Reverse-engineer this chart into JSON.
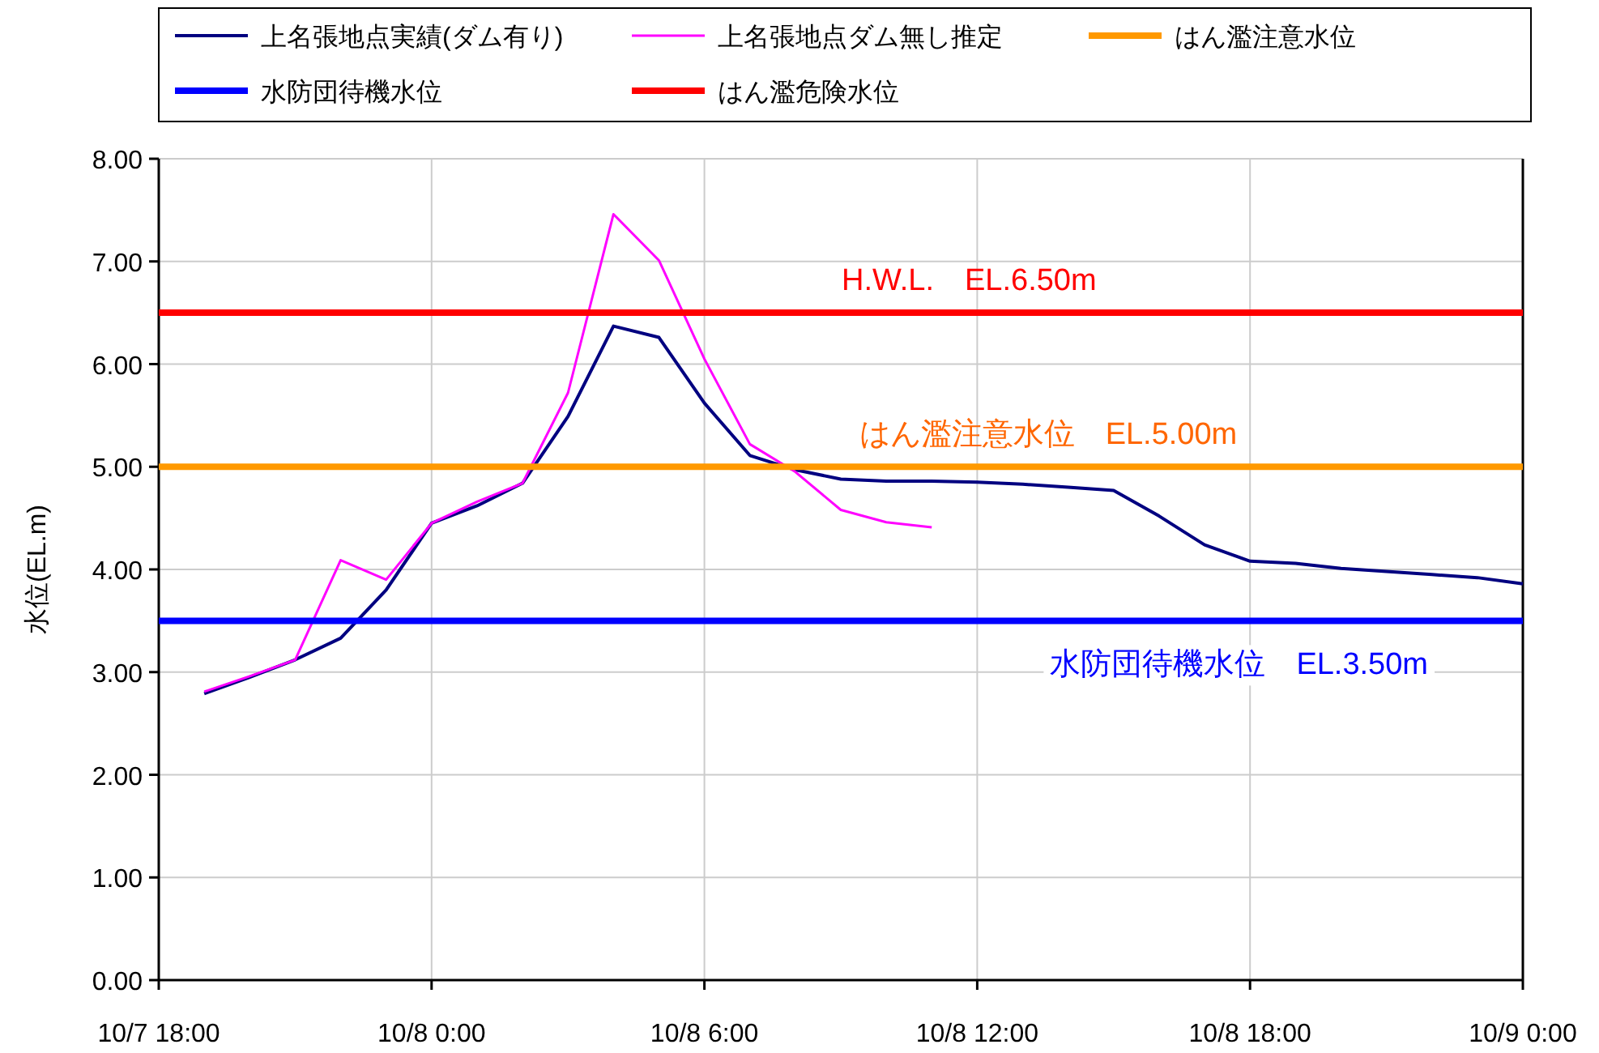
{
  "chart_data": {
    "type": "line",
    "ylabel": "水位(EL.m)",
    "categories": [
      "10/7 18:00",
      null,
      null,
      null,
      null,
      null,
      "10/8 0:00",
      null,
      null,
      null,
      null,
      null,
      "10/8 6:00",
      null,
      null,
      null,
      null,
      null,
      "10/8 12:00",
      null,
      null,
      null,
      null,
      null,
      "10/8 18:00",
      null,
      null,
      null,
      null,
      null,
      "10/9 0:00"
    ],
    "ylim": [
      0,
      8
    ],
    "yticks": [
      {
        "value": 0,
        "label": "0.00"
      },
      {
        "value": 1,
        "label": "1.00"
      },
      {
        "value": 2,
        "label": "2.00"
      },
      {
        "value": 3,
        "label": "3.00"
      },
      {
        "value": 4,
        "label": "4.00"
      },
      {
        "value": 5,
        "label": "5.00"
      },
      {
        "value": 6,
        "label": "6.00"
      },
      {
        "value": 7,
        "label": "7.00"
      },
      {
        "value": 8,
        "label": "8.00"
      }
    ],
    "grid": true,
    "legend": "top",
    "marker": "none",
    "line_style": "solid",
    "series": [
      {
        "name": "上名張地点実績(ダム有り)",
        "color": "#000080",
        "values": [
          null,
          2.79,
          2.95,
          3.12,
          3.33,
          3.8,
          4.45,
          4.62,
          4.84,
          5.49,
          6.37,
          6.26,
          5.62,
          5.11,
          4.97,
          4.88,
          4.86,
          4.86,
          4.85,
          4.83,
          4.8,
          4.77,
          4.52,
          4.24,
          4.08,
          4.06,
          4.01,
          3.98,
          3.95,
          3.92,
          3.86
        ]
      },
      {
        "name": "上名張地点ダム無し推定",
        "color": "#ff00ff",
        "values": [
          null,
          2.81,
          2.96,
          3.12,
          4.09,
          3.9,
          4.45,
          4.66,
          4.84,
          5.72,
          7.46,
          7.01,
          6.05,
          5.22,
          4.95,
          4.58,
          4.46,
          4.41,
          null,
          null,
          null,
          null,
          null,
          null,
          null,
          null,
          null,
          null,
          null,
          null,
          null
        ]
      },
      {
        "name": "はん濫注意水位",
        "color": "#ff9900",
        "values": [
          5,
          5,
          5,
          5,
          5,
          5,
          5,
          5,
          5,
          5,
          5,
          5,
          5,
          5,
          5,
          5,
          5,
          5,
          5,
          5,
          5,
          5,
          5,
          5,
          5,
          5,
          5,
          5,
          5,
          5,
          5
        ]
      },
      {
        "name": "水防団待機水位",
        "color": "#0000ff",
        "values": [
          3.5,
          3.5,
          3.5,
          3.5,
          3.5,
          3.5,
          3.5,
          3.5,
          3.5,
          3.5,
          3.5,
          3.5,
          3.5,
          3.5,
          3.5,
          3.5,
          3.5,
          3.5,
          3.5,
          3.5,
          3.5,
          3.5,
          3.5,
          3.5,
          3.5,
          3.5,
          3.5,
          3.5,
          3.5,
          3.5,
          3.5
        ]
      },
      {
        "name": "はん濫危険水位",
        "color": "#ff0000",
        "values": [
          6.5,
          6.5,
          6.5,
          6.5,
          6.5,
          6.5,
          6.5,
          6.5,
          6.5,
          6.5,
          6.5,
          6.5,
          6.5,
          6.5,
          6.5,
          6.5,
          6.5,
          6.5,
          6.5,
          6.5,
          6.5,
          6.5,
          6.5,
          6.5,
          6.5,
          6.5,
          6.5,
          6.5,
          6.5,
          6.5,
          6.5
        ]
      }
    ],
    "annotations": [
      {
        "text": "H.W.L.　EL.6.50m",
        "y": 6.5
      },
      {
        "text": "はん濫注意水位　EL.5.00m",
        "y": 5
      },
      {
        "text": "水防団待機水位　EL.3.50m",
        "y": 3.5
      }
    ]
  }
}
